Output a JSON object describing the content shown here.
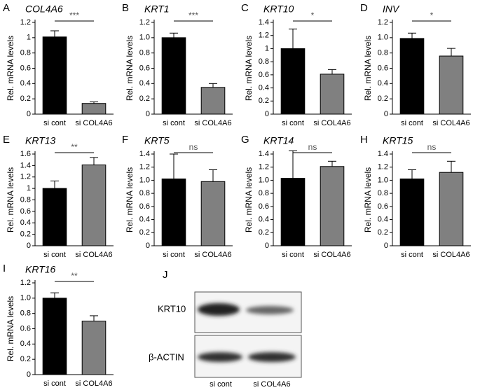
{
  "chart_data": [
    {
      "type": "bar",
      "panel": "A",
      "title": "COL4A6",
      "y_label": "Rel. mRNA levels",
      "categories": [
        "si cont",
        "si COL4A6"
      ],
      "values": [
        1.01,
        0.14
      ],
      "errors": [
        0.08,
        0.02
      ],
      "colors": [
        "#000000",
        "#808080"
      ],
      "ylim": [
        0,
        1.2
      ],
      "yticks": [
        0,
        0.2,
        0.4,
        0.6,
        0.8,
        1,
        1.2
      ],
      "significance": "***"
    },
    {
      "type": "bar",
      "panel": "B",
      "title": "KRT1",
      "y_label": "Rel. mRNA levels",
      "categories": [
        "si cont",
        "si COL4A6"
      ],
      "values": [
        1.0,
        0.35
      ],
      "errors": [
        0.06,
        0.05
      ],
      "colors": [
        "#000000",
        "#808080"
      ],
      "ylim": [
        0,
        1.2
      ],
      "yticks": [
        0,
        0.2,
        0.4,
        0.6,
        0.8,
        {
          "value": 1,
          "label": "1.0"
        },
        1.2
      ],
      "significance": "***"
    },
    {
      "type": "bar",
      "panel": "C",
      "title": "KRT10",
      "y_label": "Rel. mRNA levels",
      "categories": [
        "si cont",
        "si COL4A6"
      ],
      "values": [
        1.0,
        0.61
      ],
      "errors": [
        0.3,
        0.07
      ],
      "colors": [
        "#000000",
        "#808080"
      ],
      "ylim": [
        0,
        1.4
      ],
      "yticks": [
        0,
        0.2,
        0.4,
        0.6,
        0.8,
        1,
        1.2,
        1.4
      ],
      "significance": "*"
    },
    {
      "type": "bar",
      "panel": "D",
      "title": "INV",
      "y_label": "Rel. mRNA levels",
      "categories": [
        "si cont",
        "si COL4A6"
      ],
      "values": [
        0.99,
        0.76
      ],
      "errors": [
        0.07,
        0.1
      ],
      "colors": [
        "#000000",
        "#808080"
      ],
      "ylim": [
        0,
        1.2
      ],
      "yticks": [
        0,
        0.2,
        0.4,
        0.6,
        0.8,
        {
          "value": 1,
          "label": "1.0"
        },
        1.2
      ],
      "significance": "*"
    },
    {
      "type": "bar",
      "panel": "E",
      "title": "KRT13",
      "y_label": "Rel. mRNA levels",
      "categories": [
        "si cont",
        "si COL4A6"
      ],
      "values": [
        1.0,
        1.41
      ],
      "errors": [
        0.13,
        0.13
      ],
      "colors": [
        "#000000",
        "#808080"
      ],
      "ylim": [
        0,
        1.6
      ],
      "yticks": [
        0,
        0.2,
        0.4,
        0.6,
        0.8,
        1,
        1.2,
        1.4,
        1.6
      ],
      "significance": "**"
    },
    {
      "type": "bar",
      "panel": "F",
      "title": "KRT5",
      "y_label": "Rel. mRNA levels",
      "categories": [
        "si cont",
        "si COL4A6"
      ],
      "values": [
        1.02,
        0.98
      ],
      "errors": [
        0.38,
        0.18
      ],
      "colors": [
        "#000000",
        "#808080"
      ],
      "ylim": [
        0,
        1.4
      ],
      "yticks": [
        0,
        0.2,
        0.4,
        0.6,
        0.8,
        {
          "value": 1,
          "label": "1.0"
        },
        1.2,
        1.4
      ],
      "significance": "ns"
    },
    {
      "type": "bar",
      "panel": "G",
      "title": "KRT14",
      "y_label": "Rel. mRNA levels",
      "categories": [
        "si cont",
        "si COL4A6"
      ],
      "values": [
        1.03,
        1.21
      ],
      "errors": [
        0.42,
        0.08
      ],
      "colors": [
        "#000000",
        "#808080"
      ],
      "ylim": [
        0,
        1.4
      ],
      "yticks": [
        0,
        0.2,
        0.4,
        0.6,
        0.8,
        {
          "value": 1,
          "label": "1.0"
        },
        1.2,
        1.4
      ],
      "significance": "ns"
    },
    {
      "type": "bar",
      "panel": "H",
      "title": "KRT15",
      "y_label": "Rel. mRNA levels",
      "categories": [
        "si cont",
        "si COL4A6"
      ],
      "values": [
        1.02,
        1.12
      ],
      "errors": [
        0.14,
        0.17
      ],
      "colors": [
        "#000000",
        "#808080"
      ],
      "ylim": [
        0,
        1.4
      ],
      "yticks": [
        0,
        0.2,
        0.4,
        0.6,
        0.8,
        {
          "value": 1,
          "label": "1.0"
        },
        1.2,
        1.4
      ],
      "significance": "ns"
    },
    {
      "type": "bar",
      "panel": "I",
      "title": "KRT16",
      "y_label": "Rel. mRNA levels",
      "categories": [
        "si cont",
        "si COL4A6"
      ],
      "values": [
        1.0,
        0.7
      ],
      "errors": [
        0.07,
        0.07
      ],
      "colors": [
        "#000000",
        "#808080"
      ],
      "ylim": [
        0,
        1.2
      ],
      "yticks": [
        0,
        0.2,
        0.4,
        0.6,
        0.8,
        {
          "value": 1,
          "label": "1.0"
        },
        1.2
      ],
      "significance": "**"
    }
  ],
  "blot": {
    "panel": "J",
    "rows": [
      "KRT10",
      "β-ACTIN"
    ],
    "lanes": [
      "si cont",
      "si COL4A6"
    ]
  }
}
